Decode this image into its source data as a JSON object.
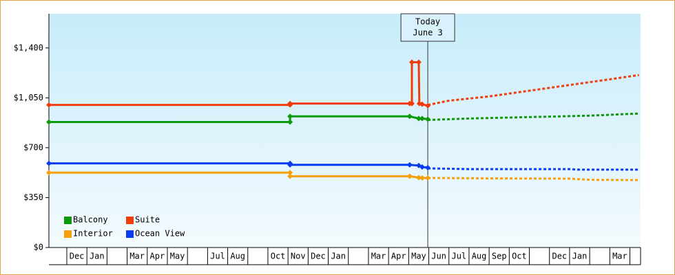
{
  "chart_data": {
    "type": "line",
    "categories": [
      null,
      "Dec",
      "Jan",
      null,
      "Mar",
      "Apr",
      "May",
      null,
      "Jul",
      "Aug",
      null,
      "Oct",
      "Nov",
      "Dec",
      "Jan",
      null,
      "Mar",
      "Apr",
      "May",
      "Jun",
      "Jul",
      "Aug",
      "Sep",
      "Oct",
      null,
      "Dec",
      "Jan",
      null,
      "Mar",
      null
    ],
    "xlim": [
      0.11,
      29.53
    ],
    "ylim": [
      0,
      1640
    ],
    "yticks": [
      {
        "value": 0,
        "label": "$0"
      },
      {
        "value": 350,
        "label": "$350"
      },
      {
        "value": 700,
        "label": "$700"
      },
      {
        "value": 1050,
        "label": "$1,050"
      },
      {
        "value": 1400,
        "label": "$1,400"
      }
    ],
    "today": {
      "x": 18.95,
      "label": [
        "Today",
        "June 3"
      ]
    },
    "series": [
      {
        "name": "Balcony",
        "color": "#0a9a0a",
        "x": [
          0.11,
          12.1,
          12.1,
          18.05,
          18.5,
          18.67,
          18.95
        ],
        "values": [
          880,
          880,
          920,
          920,
          905,
          905,
          900
        ],
        "forecast_x": [
          18.95,
          21,
          24,
          27,
          29.45
        ],
        "forecast_values": [
          895,
          905,
          915,
          925,
          940
        ]
      },
      {
        "name": "Suite",
        "color": "#f03c0a",
        "x": [
          0.11,
          12.1,
          12.1,
          18.05,
          18.16,
          18.16,
          18.5,
          18.53,
          18.67,
          18.95
        ],
        "values": [
          1000,
          1000,
          1010,
          1010,
          1010,
          1300,
          1300,
          1010,
          1005,
          995
        ],
        "forecast_x": [
          18.95,
          20,
          22,
          24,
          26,
          28,
          29.45
        ],
        "forecast_values": [
          1000,
          1030,
          1060,
          1100,
          1140,
          1180,
          1210
        ]
      },
      {
        "name": "Interior",
        "color": "#f5a00a",
        "x": [
          0.11,
          12.1,
          12.1,
          18.05,
          18.5,
          18.67,
          18.95
        ],
        "values": [
          525,
          525,
          500,
          500,
          490,
          488,
          488
        ],
        "forecast_x": [
          18.95,
          22,
          26,
          27,
          29.45
        ],
        "forecast_values": [
          488,
          485,
          483,
          475,
          473
        ]
      },
      {
        "name": "Ocean View",
        "color": "#0a3cf0",
        "x": [
          0.11,
          12.1,
          12.1,
          18.05,
          18.5,
          18.67,
          18.95
        ],
        "values": [
          590,
          590,
          580,
          580,
          575,
          565,
          560
        ],
        "forecast_x": [
          18.95,
          21,
          26,
          26.5,
          29.45
        ],
        "forecast_values": [
          555,
          550,
          550,
          546,
          546
        ]
      }
    ]
  }
}
